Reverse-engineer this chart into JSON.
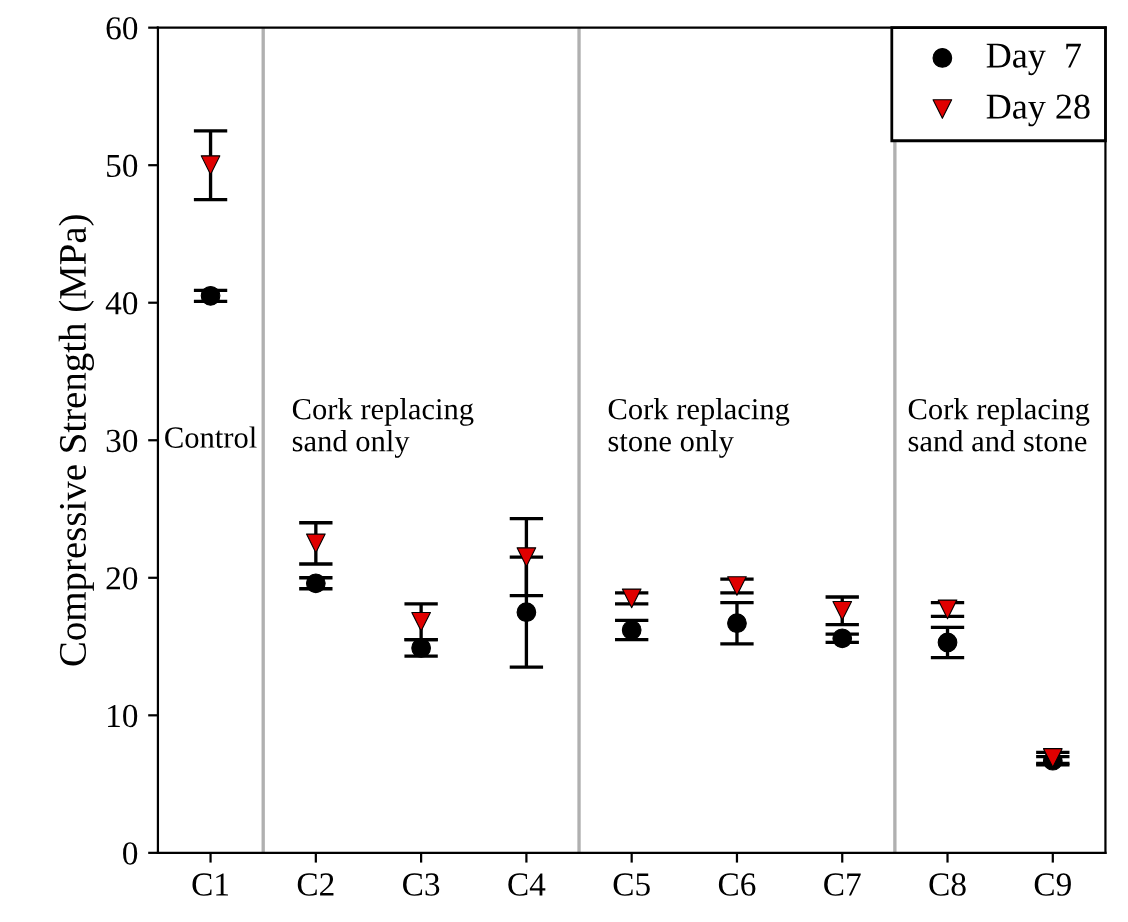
{
  "chart_data": {
    "type": "scatter",
    "ylabel": "Compressive Strength (MPa)",
    "categories": [
      "C1",
      "C2",
      "C3",
      "C4",
      "C5",
      "C6",
      "C7",
      "C8",
      "C9"
    ],
    "ylim": [
      0,
      60
    ],
    "yticks": [
      0,
      10,
      20,
      30,
      40,
      50,
      60
    ],
    "series": [
      {
        "name": "Day  7",
        "color": "#000000",
        "marker": "circle",
        "values": [
          40.5,
          19.6,
          14.9,
          17.5,
          16.2,
          16.7,
          15.6,
          15.3,
          6.7
        ],
        "errors": [
          0.4,
          0.4,
          0.6,
          4.0,
          0.7,
          1.5,
          0.3,
          1.1,
          0.3
        ]
      },
      {
        "name": "Day 28",
        "color": "#e00000",
        "marker": "triangle",
        "values": [
          50.0,
          22.5,
          16.8,
          21.5,
          18.5,
          19.4,
          17.6,
          17.7,
          6.9
        ],
        "errors": [
          2.5,
          1.5,
          1.3,
          2.8,
          0.4,
          0.5,
          1.0,
          0.5,
          0.4
        ]
      }
    ],
    "annotations": [
      "Control",
      "Cork replacing\nsand only",
      "Cork replacing\nstone only",
      "Cork replacing\nsand and stone"
    ],
    "grid": false,
    "legend": "top right"
  }
}
